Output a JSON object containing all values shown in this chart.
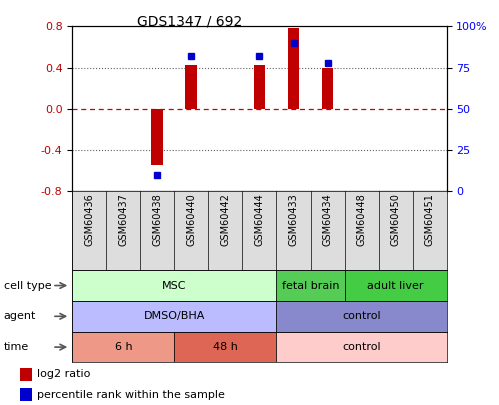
{
  "title": "GDS1347 / 692",
  "samples": [
    "GSM60436",
    "GSM60437",
    "GSM60438",
    "GSM60440",
    "GSM60442",
    "GSM60444",
    "GSM60433",
    "GSM60434",
    "GSM60448",
    "GSM60450",
    "GSM60451"
  ],
  "log2_ratio": [
    0.0,
    0.0,
    -0.55,
    0.42,
    0.0,
    0.42,
    0.78,
    0.4,
    0.0,
    0.0,
    0.0
  ],
  "percentile_rank": [
    null,
    null,
    10,
    82,
    null,
    82,
    90,
    78,
    null,
    null,
    null
  ],
  "ylim_left": [
    -0.8,
    0.8
  ],
  "ylim_right": [
    0,
    100
  ],
  "yticks_left": [
    -0.8,
    -0.4,
    0.0,
    0.4,
    0.8
  ],
  "yticks_right": [
    0,
    25,
    50,
    75,
    100
  ],
  "ytick_labels_right": [
    "0",
    "25",
    "50",
    "75",
    "100%"
  ],
  "bar_color": "#c00000",
  "dot_color": "#0000cc",
  "hline_color": "#cc0000",
  "dotted_color": "#606060",
  "cell_type_groups": [
    {
      "label": "MSC",
      "start": 0,
      "end": 5,
      "color": "#ccffcc"
    },
    {
      "label": "fetal brain",
      "start": 6,
      "end": 7,
      "color": "#55cc55"
    },
    {
      "label": "adult liver",
      "start": 8,
      "end": 10,
      "color": "#44cc44"
    }
  ],
  "agent_groups": [
    {
      "label": "DMSO/BHA",
      "start": 0,
      "end": 5,
      "color": "#bbbbff"
    },
    {
      "label": "control",
      "start": 6,
      "end": 10,
      "color": "#8888cc"
    }
  ],
  "time_groups": [
    {
      "label": "6 h",
      "start": 0,
      "end": 2,
      "color": "#ee9988"
    },
    {
      "label": "48 h",
      "start": 3,
      "end": 5,
      "color": "#dd6655"
    },
    {
      "label": "control",
      "start": 6,
      "end": 10,
      "color": "#ffcccc"
    }
  ],
  "row_labels": [
    "cell type",
    "agent",
    "time"
  ],
  "legend_items": [
    {
      "label": "log2 ratio",
      "color": "#c00000"
    },
    {
      "label": "percentile rank within the sample",
      "color": "#0000cc"
    }
  ],
  "sample_bg": "#dddddd",
  "background_color": "#ffffff",
  "fig_w": 4.99,
  "fig_h": 4.05,
  "dpi": 100
}
